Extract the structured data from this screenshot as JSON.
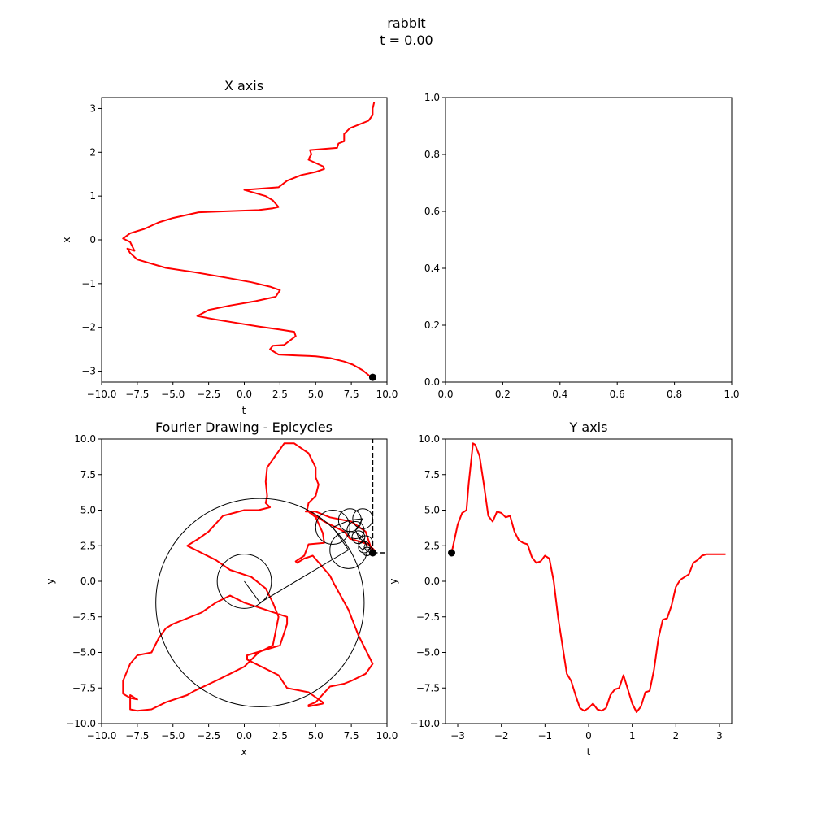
{
  "suptitle": {
    "line1": "rabbit",
    "line2": "t = 0.00"
  },
  "colors": {
    "curve": "#ff0000",
    "ink": "#000000"
  },
  "chart_data": [
    {
      "id": "x_axis",
      "type": "line",
      "title": "X axis",
      "xlabel": "t",
      "ylabel": "x",
      "xlim": [
        -10,
        10
      ],
      "ylim": [
        -3.25,
        3.25
      ],
      "xticks": [
        -10,
        -7.5,
        -5,
        -2.5,
        0,
        2.5,
        5,
        7.5,
        10
      ],
      "xtick_labels": [
        "−10.0",
        "−7.5",
        "−5.0",
        "−2.5",
        "0.0",
        "2.5",
        "5.0",
        "7.5",
        "10.0"
      ],
      "yticks": [
        -3,
        -2,
        -1,
        0,
        1,
        2,
        3
      ],
      "ytick_labels": [
        "−3",
        "−2",
        "−1",
        "0",
        "1",
        "2",
        "3"
      ],
      "series": [
        {
          "x": [
            8.9,
            8.3,
            7.6,
            7.0,
            6.0,
            5.0,
            3.7,
            2.4,
            1.8,
            2.0,
            2.8,
            3.6,
            3.5,
            2.5,
            1.0,
            -0.5,
            -2.0,
            -3.3,
            -2.5,
            -1.0,
            0.8,
            2.2,
            2.5,
            1.8,
            0.5,
            -1.5,
            -3.5,
            -5.5,
            -7.5,
            -8.0,
            -8.2,
            -7.7,
            -8.0,
            -8.5,
            -8.0,
            -7.0,
            -6.0,
            -5.0,
            -3.2,
            1.0,
            2.0,
            2.4,
            2.0,
            1.5,
            0.0,
            2.4,
            3.0,
            4.0,
            5.0,
            5.6,
            5.5,
            4.5,
            4.6,
            4.7,
            4.6,
            6.5,
            6.6,
            7.0,
            7.0,
            7.4,
            8.7,
            9.0,
            9.0,
            9.1
          ],
          "y": [
            -3.14,
            -2.98,
            -2.85,
            -2.78,
            -2.7,
            -2.66,
            -2.64,
            -2.62,
            -2.5,
            -2.42,
            -2.4,
            -2.2,
            -2.1,
            -2.05,
            -1.98,
            -1.9,
            -1.82,
            -1.74,
            -1.6,
            -1.5,
            -1.4,
            -1.3,
            -1.15,
            -1.07,
            -0.97,
            -0.85,
            -0.74,
            -0.64,
            -0.45,
            -0.3,
            -0.2,
            -0.25,
            -0.05,
            0.03,
            0.15,
            0.25,
            0.4,
            0.5,
            0.63,
            0.68,
            0.72,
            0.75,
            0.9,
            1.0,
            1.14,
            1.2,
            1.35,
            1.48,
            1.55,
            1.62,
            1.68,
            1.83,
            1.9,
            1.95,
            2.05,
            2.1,
            2.2,
            2.25,
            2.42,
            2.55,
            2.72,
            2.85,
            3.0,
            3.14
          ]
        }
      ],
      "marker": {
        "x": 9.0,
        "y": -3.14
      }
    },
    {
      "id": "empty",
      "type": "line",
      "xlim": [
        0,
        1
      ],
      "ylim": [
        0,
        1
      ],
      "xticks": [
        0,
        0.2,
        0.4,
        0.6,
        0.8,
        1.0
      ],
      "xtick_labels": [
        "0.0",
        "0.2",
        "0.4",
        "0.6",
        "0.8",
        "1.0"
      ],
      "yticks": [
        0,
        0.2,
        0.4,
        0.6,
        0.8,
        1.0
      ],
      "ytick_labels": [
        "0.0",
        "0.2",
        "0.4",
        "0.6",
        "0.8",
        "1.0"
      ],
      "series": []
    },
    {
      "id": "epicycles",
      "type": "line",
      "title": "Fourier Drawing - Epicycles",
      "xlabel": "x",
      "ylabel": "y",
      "xlim": [
        -10,
        10
      ],
      "ylim": [
        -10,
        10
      ],
      "xticks": [
        -10,
        -7.5,
        -5,
        -2.5,
        0,
        2.5,
        5,
        7.5,
        10
      ],
      "xtick_labels": [
        "−10.0",
        "−7.5",
        "−5.0",
        "−2.5",
        "0.0",
        "2.5",
        "5.0",
        "7.5",
        "10.0"
      ],
      "yticks": [
        -10,
        -7.5,
        -5,
        -2.5,
        0,
        2.5,
        5,
        7.5,
        10
      ],
      "ytick_labels": [
        "−10.0",
        "−7.5",
        "−5.0",
        "−2.5",
        "0.0",
        "2.5",
        "5.0",
        "7.5",
        "10.0"
      ],
      "series": [
        {
          "x": [
            9.0,
            9.1,
            8.9,
            8.7,
            7.4,
            7.0,
            6.0,
            5.6,
            5.0,
            4.6,
            4.7,
            4.8,
            4.5,
            5.0,
            5.5,
            5.6,
            4.5,
            4.2,
            3.6,
            3.7,
            4.2,
            4.8,
            6.0,
            6.3,
            7.3,
            8.0,
            9.0,
            8.5,
            7.5,
            7.0,
            6.0,
            5.0,
            4.5,
            4.5,
            5.5,
            5.5,
            4.5,
            3.0,
            2.4,
            0.2,
            0.2,
            2.5,
            3.0,
            3.0,
            0.0,
            -1.0,
            -2.0,
            -3.0,
            -4.0,
            -5.0,
            -5.5,
            -6.0,
            -6.5,
            -7.5,
            -8.0,
            -8.5,
            -8.5,
            -8.0,
            -7.5,
            -8.0,
            -8.0,
            -7.5,
            -6.5,
            -5.5,
            -4.0,
            -3.5,
            -2.0,
            -1.0,
            0.0,
            1.0,
            2.0,
            2.2,
            2.4,
            2.0,
            1.5,
            0.5,
            -1.0,
            -2.0,
            -3.0,
            -4.0,
            -3.2,
            -2.5,
            -1.5,
            0.0,
            1.0,
            1.8,
            1.5,
            1.6,
            1.5,
            1.6,
            2.8,
            3.5,
            4.5,
            5.0,
            5.0,
            5.2,
            5.0,
            4.5,
            4.4,
            4.3,
            5.0,
            6.0,
            7.5,
            8.5,
            9.0
          ],
          "y": [
            2.0,
            2.2,
            2.4,
            2.6,
            3.0,
            3.5,
            4.0,
            4.2,
            4.6,
            4.8,
            4.9,
            4.8,
            4.9,
            4.5,
            3.4,
            2.7,
            2.6,
            1.8,
            1.4,
            1.3,
            1.6,
            1.8,
            0.4,
            -0.2,
            -2.0,
            -3.8,
            -5.8,
            -6.5,
            -7.0,
            -7.2,
            -7.4,
            -8.5,
            -8.7,
            -8.8,
            -8.6,
            -8.5,
            -7.8,
            -7.5,
            -6.6,
            -5.5,
            -5.2,
            -4.5,
            -3.0,
            -2.5,
            -1.5,
            -1.0,
            -1.5,
            -2.2,
            -2.6,
            -3.0,
            -3.3,
            -4.0,
            -5.0,
            -5.2,
            -5.8,
            -7.0,
            -7.9,
            -8.2,
            -8.3,
            -8.0,
            -9.0,
            -9.1,
            -9.0,
            -8.5,
            -8.0,
            -7.7,
            -7.0,
            -6.5,
            -6.0,
            -5.0,
            -4.5,
            -3.5,
            -2.5,
            -1.5,
            -0.5,
            0.3,
            0.8,
            1.5,
            2.0,
            2.5,
            3.0,
            3.5,
            4.6,
            5.0,
            5.0,
            5.2,
            5.5,
            6.0,
            7.0,
            8.0,
            9.7,
            9.7,
            9.0,
            8.0,
            7.3,
            6.8,
            6.0,
            5.5,
            5.0,
            4.9,
            4.9,
            4.5,
            4.2,
            3.5,
            2.0
          ]
        }
      ],
      "circles": [
        {
          "cx": 0.0,
          "cy": 0.0,
          "r": 1.9
        },
        {
          "cx": 1.1,
          "cy": -1.5,
          "r": 7.3
        },
        {
          "cx": 7.3,
          "cy": 2.2,
          "r": 1.3
        },
        {
          "cx": 6.2,
          "cy": 3.8,
          "r": 1.2
        },
        {
          "cx": 7.4,
          "cy": 4.3,
          "r": 0.8
        },
        {
          "cx": 8.3,
          "cy": 4.4,
          "r": 0.7
        },
        {
          "cx": 7.8,
          "cy": 3.6,
          "r": 0.6
        },
        {
          "cx": 8.0,
          "cy": 3.1,
          "r": 0.45
        },
        {
          "cx": 8.5,
          "cy": 2.7,
          "r": 0.5
        },
        {
          "cx": 8.4,
          "cy": 2.4,
          "r": 0.4
        },
        {
          "cx": 8.6,
          "cy": 2.1,
          "r": 0.3
        }
      ],
      "arms": {
        "x": [
          0.0,
          1.1,
          7.3,
          6.2,
          7.4,
          8.3,
          7.8,
          8.0,
          8.5,
          8.4,
          8.6,
          9.0
        ],
        "y": [
          0.0,
          -1.5,
          2.2,
          3.8,
          4.3,
          4.4,
          3.6,
          3.1,
          2.7,
          2.4,
          2.1,
          2.0
        ]
      },
      "marker": {
        "x": 9.0,
        "y": 2.0
      },
      "guide_vertical": {
        "x": 9.0,
        "from_y": 2.0
      },
      "guide_horizontal": {
        "y": 2.0,
        "from_x": 9.0
      }
    },
    {
      "id": "y_axis",
      "type": "line",
      "title": "Y axis",
      "xlabel": "t",
      "ylabel": "y",
      "xlim": [
        -3.28,
        3.28
      ],
      "ylim": [
        -10,
        10
      ],
      "xticks": [
        -3,
        -2,
        -1,
        0,
        1,
        2,
        3
      ],
      "xtick_labels": [
        "−3",
        "−2",
        "−1",
        "0",
        "1",
        "2",
        "3"
      ],
      "yticks": [
        -10,
        -7.5,
        -5,
        -2.5,
        0,
        2.5,
        5,
        7.5,
        10
      ],
      "ytick_labels": [
        "−10.0",
        "−7.5",
        "−5.0",
        "−2.5",
        "0.0",
        "2.5",
        "5.0",
        "7.5",
        "10.0"
      ],
      "series": [
        {
          "x": [
            -3.14,
            -3.0,
            -2.9,
            -2.8,
            -2.75,
            -2.65,
            -2.6,
            -2.5,
            -2.4,
            -2.3,
            -2.2,
            -2.1,
            -2.0,
            -1.9,
            -1.8,
            -1.7,
            -1.6,
            -1.5,
            -1.4,
            -1.3,
            -1.2,
            -1.1,
            -1.0,
            -0.9,
            -0.8,
            -0.7,
            -0.6,
            -0.5,
            -0.4,
            -0.3,
            -0.2,
            -0.1,
            0.0,
            0.1,
            0.2,
            0.3,
            0.4,
            0.5,
            0.6,
            0.7,
            0.8,
            0.9,
            1.0,
            1.1,
            1.2,
            1.3,
            1.4,
            1.5,
            1.6,
            1.7,
            1.8,
            1.9,
            2.0,
            2.1,
            2.2,
            2.3,
            2.4,
            2.5,
            2.6,
            2.7,
            2.8,
            2.9,
            3.0,
            3.14
          ],
          "y": [
            2.0,
            4.0,
            4.8,
            5.0,
            6.8,
            9.7,
            9.6,
            8.8,
            6.8,
            4.6,
            4.2,
            4.9,
            4.8,
            4.5,
            4.6,
            3.5,
            2.9,
            2.7,
            2.6,
            1.7,
            1.3,
            1.4,
            1.8,
            1.6,
            0.0,
            -2.5,
            -4.5,
            -6.5,
            -7.0,
            -8.0,
            -8.9,
            -9.1,
            -8.9,
            -8.6,
            -9.0,
            -9.1,
            -8.9,
            -8.0,
            -7.6,
            -7.5,
            -6.6,
            -7.6,
            -8.6,
            -9.2,
            -8.8,
            -7.8,
            -7.7,
            -6.2,
            -4.0,
            -2.7,
            -2.6,
            -1.7,
            -0.4,
            0.1,
            0.3,
            0.5,
            1.3,
            1.5,
            1.8,
            1.9,
            1.9,
            1.9,
            1.9,
            1.9
          ]
        }
      ],
      "marker": {
        "x": -3.14,
        "y": 2.0
      }
    }
  ]
}
